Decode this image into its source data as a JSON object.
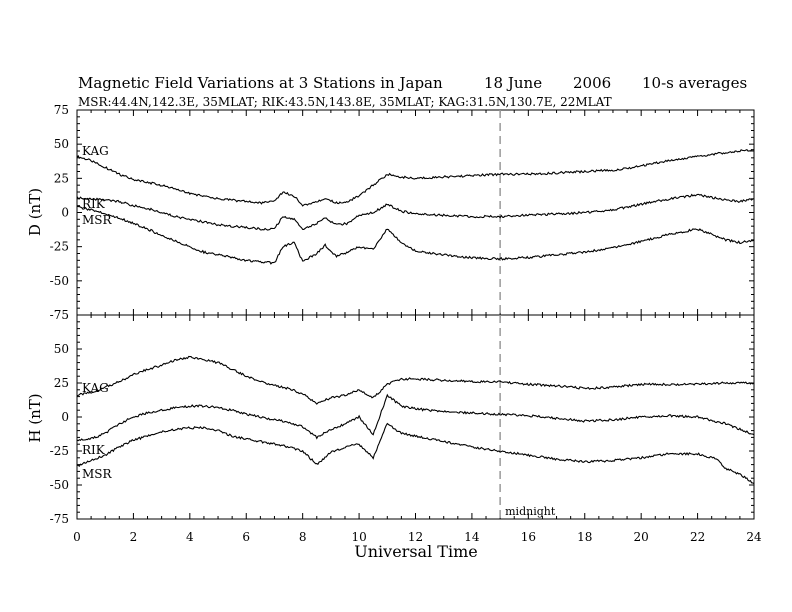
{
  "header": {
    "title": "Magnetic Field Variations at 3 Stations in Japan",
    "date_day": "18 June",
    "date_year": "2006",
    "averaging": "10-s averages",
    "stations_line": "MSR:44.4N,142.3E, 35MLAT;  RIK:43.5N,143.8E, 35MLAT;  KAG:31.5N,130.7E, 22MLAT"
  },
  "chart_data": [
    {
      "type": "line",
      "panel": "top",
      "ylabel": "D (nT)",
      "xlim": [
        0,
        24
      ],
      "ylim": [
        -75,
        75
      ],
      "yticks": [
        -75,
        -50,
        -25,
        0,
        25,
        50,
        75
      ],
      "series": [
        {
          "name": "KAG",
          "x": [
            0,
            0.5,
            1,
            1.5,
            2,
            2.5,
            3,
            3.5,
            4,
            4.5,
            5,
            5.5,
            6,
            6.5,
            7,
            7.3,
            7.7,
            8,
            8.5,
            8.8,
            9.2,
            9.6,
            10,
            10.5,
            11,
            11.5,
            12,
            13,
            14,
            15,
            16,
            17,
            18,
            19,
            20,
            21,
            22,
            23,
            23.5,
            24
          ],
          "y": [
            41,
            38,
            33,
            28,
            24,
            22,
            20,
            17,
            14,
            12,
            10,
            9,
            8,
            7,
            8,
            15,
            12,
            5,
            8,
            10,
            7,
            8,
            12,
            20,
            28,
            26,
            25,
            26,
            27,
            28,
            28,
            29,
            30,
            31,
            34,
            38,
            41,
            44,
            45,
            46
          ]
        },
        {
          "name": "RIK",
          "x": [
            0,
            0.5,
            1,
            1.5,
            2,
            2.5,
            3,
            3.5,
            4,
            4.5,
            5,
            5.5,
            6,
            6.5,
            7,
            7.3,
            7.7,
            8,
            8.5,
            8.8,
            9.2,
            9.6,
            10,
            10.5,
            11,
            11.5,
            12,
            13,
            14,
            15,
            16,
            17,
            18,
            19,
            20,
            21,
            22,
            23,
            23.5,
            24
          ],
          "y": [
            11,
            10,
            9,
            8,
            5,
            3,
            0,
            -3,
            -5,
            -7,
            -9,
            -10,
            -11,
            -12,
            -12,
            -3,
            -5,
            -12,
            -8,
            -4,
            -9,
            -8,
            -2,
            0,
            6,
            1,
            -1,
            -2,
            -3,
            -3,
            -2,
            -1,
            0,
            2,
            6,
            10,
            13,
            9,
            8,
            10
          ]
        },
        {
          "name": "MSR",
          "x": [
            0,
            0.5,
            1,
            1.5,
            2,
            2.5,
            3,
            3.5,
            4,
            4.5,
            5,
            5.5,
            6,
            6.5,
            7,
            7.3,
            7.7,
            8,
            8.5,
            8.8,
            9.2,
            9.6,
            10,
            10.5,
            11,
            11.5,
            12,
            13,
            14,
            15,
            16,
            17,
            18,
            19,
            20,
            21,
            22,
            23,
            23.5,
            24
          ],
          "y": [
            4,
            2,
            -1,
            -4,
            -8,
            -12,
            -17,
            -21,
            -25,
            -29,
            -31,
            -33,
            -35,
            -36,
            -37,
            -25,
            -22,
            -36,
            -30,
            -24,
            -32,
            -29,
            -25,
            -27,
            -12,
            -22,
            -28,
            -31,
            -33,
            -34,
            -33,
            -31,
            -29,
            -26,
            -21,
            -16,
            -12,
            -20,
            -22,
            -20
          ]
        }
      ],
      "annotations": [
        {
          "text": "midnight",
          "x": 15
        }
      ],
      "dashed_vline_x": 15
    },
    {
      "type": "line",
      "panel": "bottom",
      "ylabel": "H (nT)",
      "xlabel": "Universal Time",
      "xlim": [
        0,
        24
      ],
      "ylim": [
        -75,
        75
      ],
      "xticks": [
        0,
        2,
        4,
        6,
        8,
        10,
        12,
        14,
        16,
        18,
        20,
        22,
        24
      ],
      "yticks": [
        -75,
        -50,
        -25,
        0,
        25,
        50,
        75
      ],
      "series": [
        {
          "name": "KAG",
          "x": [
            0,
            0.5,
            1,
            1.5,
            2,
            2.5,
            3,
            3.5,
            4,
            4.5,
            5,
            5.5,
            6,
            6.5,
            7,
            7.5,
            8,
            8.5,
            9,
            9.5,
            10,
            10.5,
            11,
            11.5,
            12,
            13,
            14,
            15,
            16,
            17,
            18,
            19,
            20,
            21,
            22,
            23,
            24
          ],
          "y": [
            16,
            18,
            22,
            26,
            31,
            35,
            38,
            42,
            44,
            42,
            40,
            35,
            30,
            26,
            23,
            21,
            17,
            10,
            14,
            16,
            20,
            14,
            24,
            28,
            28,
            27,
            26,
            26,
            24,
            23,
            21,
            22,
            24,
            24,
            24,
            25,
            25
          ]
        },
        {
          "name": "RIK",
          "x": [
            0,
            0.5,
            1,
            1.5,
            2,
            2.5,
            3,
            3.5,
            4,
            4.5,
            5,
            5.5,
            6,
            6.5,
            7,
            7.5,
            8,
            8.5,
            9,
            9.5,
            10,
            10.5,
            11,
            11.5,
            12,
            13,
            14,
            15,
            16,
            17,
            18,
            19,
            20,
            21,
            22,
            23,
            24
          ],
          "y": [
            -17,
            -16,
            -12,
            -5,
            0,
            3,
            5,
            7,
            8,
            8,
            7,
            5,
            2,
            0,
            -2,
            -4,
            -7,
            -15,
            -9,
            -5,
            0,
            -13,
            16,
            8,
            6,
            4,
            3,
            2,
            1,
            -1,
            -3,
            -2,
            0,
            1,
            0,
            -5,
            -13
          ]
        },
        {
          "name": "MSR",
          "x": [
            0,
            0.5,
            1,
            1.5,
            2,
            2.5,
            3,
            3.5,
            4,
            4.5,
            5,
            5.5,
            6,
            6.5,
            7,
            7.5,
            8,
            8.5,
            9,
            9.5,
            10,
            10.5,
            11,
            11.5,
            12,
            13,
            14,
            15,
            16,
            17,
            18,
            19,
            20,
            21,
            22,
            22.7,
            23,
            23.5,
            24
          ],
          "y": [
            -36,
            -32,
            -28,
            -22,
            -17,
            -14,
            -11,
            -9,
            -8,
            -8,
            -10,
            -14,
            -16,
            -18,
            -20,
            -22,
            -25,
            -35,
            -26,
            -22,
            -20,
            -30,
            -5,
            -12,
            -14,
            -18,
            -22,
            -25,
            -28,
            -31,
            -33,
            -32,
            -30,
            -27,
            -27,
            -31,
            -38,
            -42,
            -49
          ]
        }
      ],
      "annotations": [
        {
          "text": "midnight",
          "x": 15
        }
      ],
      "dashed_vline_x": 15
    }
  ]
}
